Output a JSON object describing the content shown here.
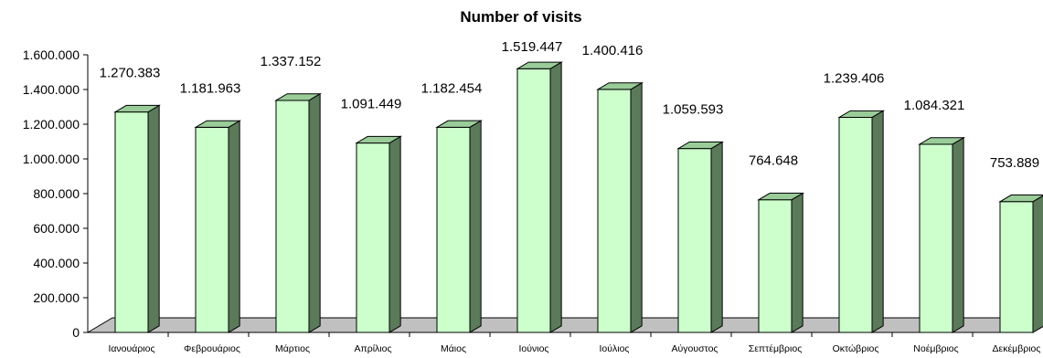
{
  "chart_data": {
    "type": "bar",
    "title": "Number of visits",
    "xlabel": "",
    "ylabel": "",
    "categories": [
      "Ιανουάριος",
      "Φεβρουάριος",
      "Μάρτιος",
      "Απρίλιος",
      "Μάιος",
      "Ιούνιος",
      "Ιούλιος",
      "Αύγουστος",
      "Σεπτέμβριος",
      "Οκτώβριος",
      "Νοέμβριος",
      "Δεκέμβριος"
    ],
    "values": [
      1270383,
      1181963,
      1337152,
      1091449,
      1182454,
      1519447,
      1400416,
      1059593,
      764648,
      1239406,
      1084321,
      753889
    ],
    "data_labels": [
      "1.270.383",
      "1.181.963",
      "1.337.152",
      "1.091.449",
      "1.182.454",
      "1.519.447",
      "1.400.416",
      "1.059.593",
      "764.648",
      "1.239.406",
      "1.084.321",
      "753.889"
    ],
    "ylim": [
      0,
      1600000
    ],
    "yticks": [
      0,
      200000,
      400000,
      600000,
      800000,
      1000000,
      1200000,
      1400000,
      1600000
    ],
    "ytick_labels": [
      "0",
      "200.000",
      "400.000",
      "600.000",
      "800.000",
      "1.000.000",
      "1.200.000",
      "1.400.000",
      "1.600.000"
    ],
    "grid": false,
    "legend": "none",
    "style": "3d-column",
    "colors": {
      "bar_front": "#ccffcc",
      "bar_side": "#5a7a5a",
      "bar_top": "#99cc99",
      "floor": "#c0c0c0",
      "outline": "#000000"
    }
  }
}
